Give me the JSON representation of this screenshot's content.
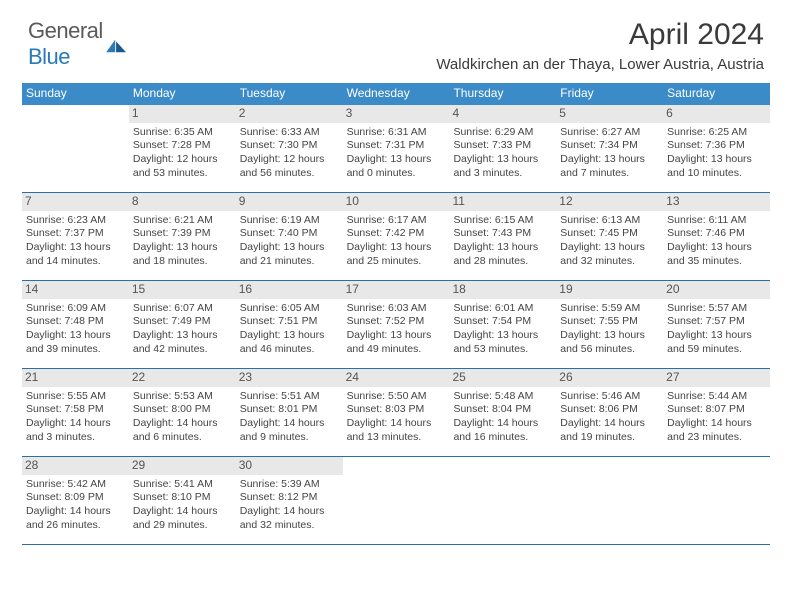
{
  "brand": {
    "name1": "General",
    "name2": "Blue"
  },
  "title": "April 2024",
  "location": "Waldkirchen an der Thaya, Lower Austria, Austria",
  "colors": {
    "header_bg": "#3b8bc8",
    "header_text": "#ffffff",
    "daynum_bg": "#e8e8e8",
    "week_border": "#2a6fa5",
    "brand_gray": "#5a5a5a",
    "brand_blue": "#2a7ab8"
  },
  "day_names": [
    "Sunday",
    "Monday",
    "Tuesday",
    "Wednesday",
    "Thursday",
    "Friday",
    "Saturday"
  ],
  "weeks": [
    [
      {
        "n": "",
        "sr": "",
        "ss": "",
        "dl": ""
      },
      {
        "n": "1",
        "sr": "Sunrise: 6:35 AM",
        "ss": "Sunset: 7:28 PM",
        "dl": "Daylight: 12 hours and 53 minutes."
      },
      {
        "n": "2",
        "sr": "Sunrise: 6:33 AM",
        "ss": "Sunset: 7:30 PM",
        "dl": "Daylight: 12 hours and 56 minutes."
      },
      {
        "n": "3",
        "sr": "Sunrise: 6:31 AM",
        "ss": "Sunset: 7:31 PM",
        "dl": "Daylight: 13 hours and 0 minutes."
      },
      {
        "n": "4",
        "sr": "Sunrise: 6:29 AM",
        "ss": "Sunset: 7:33 PM",
        "dl": "Daylight: 13 hours and 3 minutes."
      },
      {
        "n": "5",
        "sr": "Sunrise: 6:27 AM",
        "ss": "Sunset: 7:34 PM",
        "dl": "Daylight: 13 hours and 7 minutes."
      },
      {
        "n": "6",
        "sr": "Sunrise: 6:25 AM",
        "ss": "Sunset: 7:36 PM",
        "dl": "Daylight: 13 hours and 10 minutes."
      }
    ],
    [
      {
        "n": "7",
        "sr": "Sunrise: 6:23 AM",
        "ss": "Sunset: 7:37 PM",
        "dl": "Daylight: 13 hours and 14 minutes."
      },
      {
        "n": "8",
        "sr": "Sunrise: 6:21 AM",
        "ss": "Sunset: 7:39 PM",
        "dl": "Daylight: 13 hours and 18 minutes."
      },
      {
        "n": "9",
        "sr": "Sunrise: 6:19 AM",
        "ss": "Sunset: 7:40 PM",
        "dl": "Daylight: 13 hours and 21 minutes."
      },
      {
        "n": "10",
        "sr": "Sunrise: 6:17 AM",
        "ss": "Sunset: 7:42 PM",
        "dl": "Daylight: 13 hours and 25 minutes."
      },
      {
        "n": "11",
        "sr": "Sunrise: 6:15 AM",
        "ss": "Sunset: 7:43 PM",
        "dl": "Daylight: 13 hours and 28 minutes."
      },
      {
        "n": "12",
        "sr": "Sunrise: 6:13 AM",
        "ss": "Sunset: 7:45 PM",
        "dl": "Daylight: 13 hours and 32 minutes."
      },
      {
        "n": "13",
        "sr": "Sunrise: 6:11 AM",
        "ss": "Sunset: 7:46 PM",
        "dl": "Daylight: 13 hours and 35 minutes."
      }
    ],
    [
      {
        "n": "14",
        "sr": "Sunrise: 6:09 AM",
        "ss": "Sunset: 7:48 PM",
        "dl": "Daylight: 13 hours and 39 minutes."
      },
      {
        "n": "15",
        "sr": "Sunrise: 6:07 AM",
        "ss": "Sunset: 7:49 PM",
        "dl": "Daylight: 13 hours and 42 minutes."
      },
      {
        "n": "16",
        "sr": "Sunrise: 6:05 AM",
        "ss": "Sunset: 7:51 PM",
        "dl": "Daylight: 13 hours and 46 minutes."
      },
      {
        "n": "17",
        "sr": "Sunrise: 6:03 AM",
        "ss": "Sunset: 7:52 PM",
        "dl": "Daylight: 13 hours and 49 minutes."
      },
      {
        "n": "18",
        "sr": "Sunrise: 6:01 AM",
        "ss": "Sunset: 7:54 PM",
        "dl": "Daylight: 13 hours and 53 minutes."
      },
      {
        "n": "19",
        "sr": "Sunrise: 5:59 AM",
        "ss": "Sunset: 7:55 PM",
        "dl": "Daylight: 13 hours and 56 minutes."
      },
      {
        "n": "20",
        "sr": "Sunrise: 5:57 AM",
        "ss": "Sunset: 7:57 PM",
        "dl": "Daylight: 13 hours and 59 minutes."
      }
    ],
    [
      {
        "n": "21",
        "sr": "Sunrise: 5:55 AM",
        "ss": "Sunset: 7:58 PM",
        "dl": "Daylight: 14 hours and 3 minutes."
      },
      {
        "n": "22",
        "sr": "Sunrise: 5:53 AM",
        "ss": "Sunset: 8:00 PM",
        "dl": "Daylight: 14 hours and 6 minutes."
      },
      {
        "n": "23",
        "sr": "Sunrise: 5:51 AM",
        "ss": "Sunset: 8:01 PM",
        "dl": "Daylight: 14 hours and 9 minutes."
      },
      {
        "n": "24",
        "sr": "Sunrise: 5:50 AM",
        "ss": "Sunset: 8:03 PM",
        "dl": "Daylight: 14 hours and 13 minutes."
      },
      {
        "n": "25",
        "sr": "Sunrise: 5:48 AM",
        "ss": "Sunset: 8:04 PM",
        "dl": "Daylight: 14 hours and 16 minutes."
      },
      {
        "n": "26",
        "sr": "Sunrise: 5:46 AM",
        "ss": "Sunset: 8:06 PM",
        "dl": "Daylight: 14 hours and 19 minutes."
      },
      {
        "n": "27",
        "sr": "Sunrise: 5:44 AM",
        "ss": "Sunset: 8:07 PM",
        "dl": "Daylight: 14 hours and 23 minutes."
      }
    ],
    [
      {
        "n": "28",
        "sr": "Sunrise: 5:42 AM",
        "ss": "Sunset: 8:09 PM",
        "dl": "Daylight: 14 hours and 26 minutes."
      },
      {
        "n": "29",
        "sr": "Sunrise: 5:41 AM",
        "ss": "Sunset: 8:10 PM",
        "dl": "Daylight: 14 hours and 29 minutes."
      },
      {
        "n": "30",
        "sr": "Sunrise: 5:39 AM",
        "ss": "Sunset: 8:12 PM",
        "dl": "Daylight: 14 hours and 32 minutes."
      },
      {
        "n": "",
        "sr": "",
        "ss": "",
        "dl": ""
      },
      {
        "n": "",
        "sr": "",
        "ss": "",
        "dl": ""
      },
      {
        "n": "",
        "sr": "",
        "ss": "",
        "dl": ""
      },
      {
        "n": "",
        "sr": "",
        "ss": "",
        "dl": ""
      }
    ]
  ]
}
